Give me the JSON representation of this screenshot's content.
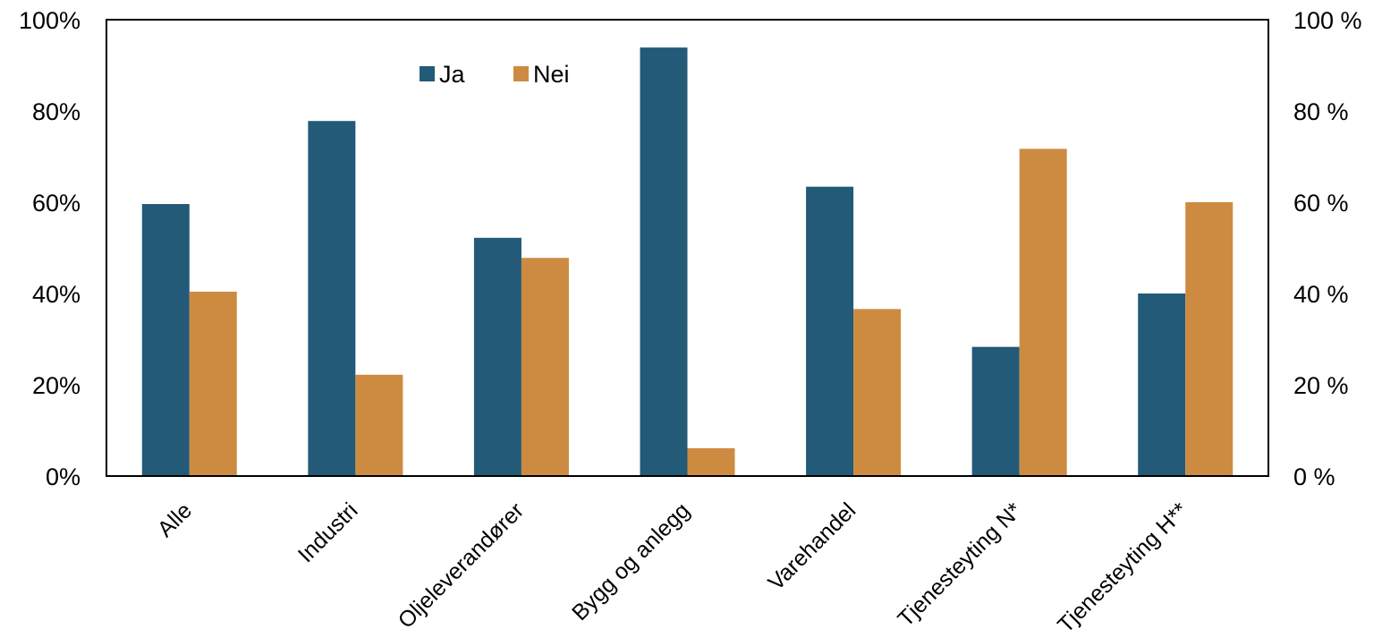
{
  "chart_data": {
    "type": "bar",
    "categories": [
      "Alle",
      "Industri",
      "Oljeleverandører",
      "Bygg og anlegg",
      "Varehandel",
      "Tjenesteyting N*",
      "Tjenesteyting H**"
    ],
    "series": [
      {
        "name": "Ja",
        "values": [
          59.6,
          77.8,
          52.2,
          93.9,
          63.4,
          28.3,
          40.0
        ],
        "color": "#225a78"
      },
      {
        "name": "Nei",
        "values": [
          40.4,
          22.2,
          47.8,
          6.1,
          36.6,
          71.7,
          60.0
        ],
        "color": "#cd8b42"
      }
    ],
    "ylim": [
      0,
      100
    ],
    "left_axis_ticks": [
      "0%",
      "20%",
      "40%",
      "60%",
      "80%",
      "100%"
    ],
    "right_axis_ticks": [
      "0 %",
      "20 %",
      "40 %",
      "60 %",
      "80 %",
      "100 %"
    ],
    "grid": false,
    "legend_position": "top-center"
  }
}
